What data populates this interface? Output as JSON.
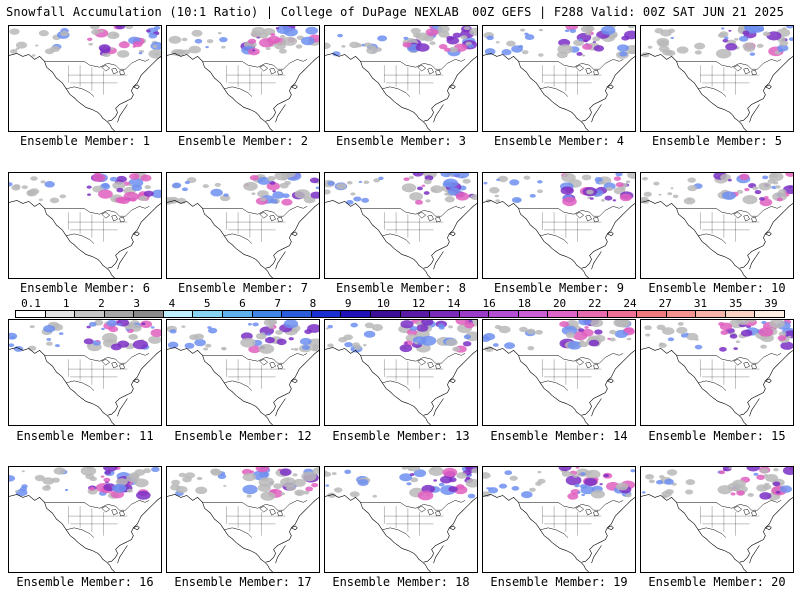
{
  "header": {
    "left": "Snowfall Accumulation (10:1 Ratio) | College of DuPage NEXLAB",
    "right": "00Z GEFS | F288 Valid: 00Z SAT JUN 21 2025"
  },
  "label_prefix": "Ensemble Member: ",
  "members": [
    "1",
    "2",
    "3",
    "4",
    "5",
    "6",
    "7",
    "8",
    "9",
    "10",
    "11",
    "12",
    "13",
    "14",
    "15",
    "16",
    "17",
    "18",
    "19",
    "20"
  ],
  "colorbar": {
    "labels": [
      "0.1",
      "1",
      "2",
      "3",
      "4",
      "5",
      "6",
      "7",
      "8",
      "9",
      "10",
      "12",
      "14",
      "16",
      "18",
      "20",
      "22",
      "24",
      "27",
      "31",
      "35",
      "39"
    ],
    "colors": [
      "#ffffff",
      "#e3e3e3",
      "#c6c6c6",
      "#a6a6a6",
      "#8a8a8a",
      "#bff0ff",
      "#88d6f4",
      "#5fb2ee",
      "#3f86e8",
      "#2a5cdc",
      "#1a2fcf",
      "#2010b8",
      "#3c0e98",
      "#5a1aa6",
      "#7a2ab8",
      "#9a3cc8",
      "#b44ed2",
      "#cc5fd6",
      "#dd66c8",
      "#e86bb0",
      "#ee7094",
      "#f07a7e",
      "#f4938f",
      "#f8b3a8",
      "#fbd2c4",
      "#fdeee4"
    ]
  },
  "colors": {
    "background": "#ffffff",
    "outline": "#000000",
    "snow_gray": "#b9b9b9",
    "snow_blue": "#6f8ff0",
    "snow_purple": "#7b2fc4",
    "snow_pink": "#e05fc0"
  }
}
